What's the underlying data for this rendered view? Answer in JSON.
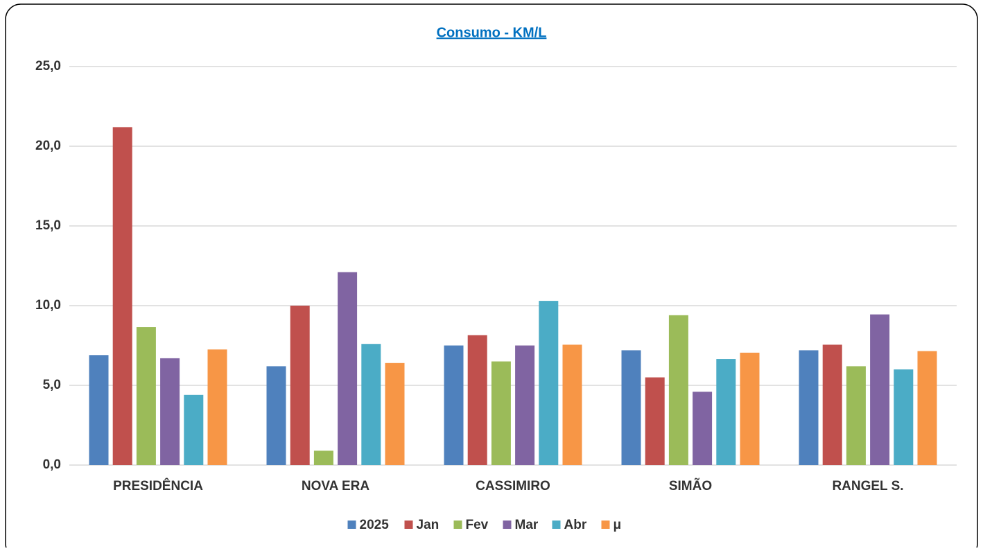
{
  "chart_data": {
    "type": "bar",
    "title": "Consumo - KM/L",
    "categories": [
      "PRESIDÊNCIA",
      "NOVA ERA",
      "CASSIMIRO",
      "SIMÃO",
      "RANGEL S."
    ],
    "series": [
      {
        "name": "2025",
        "color": "#4f81bd",
        "values": [
          6.9,
          6.2,
          7.5,
          7.2,
          7.2
        ]
      },
      {
        "name": "Jan",
        "color": "#c0504d",
        "values": [
          21.2,
          10.0,
          8.15,
          5.5,
          7.55
        ]
      },
      {
        "name": "Fev",
        "color": "#9bbb59",
        "values": [
          8.65,
          0.9,
          6.5,
          9.4,
          6.2
        ]
      },
      {
        "name": "Mar",
        "color": "#8064a2",
        "values": [
          6.7,
          12.1,
          7.5,
          4.6,
          9.45
        ]
      },
      {
        "name": "Abr",
        "color": "#4bacc6",
        "values": [
          4.4,
          7.6,
          10.3,
          6.65,
          6.0
        ]
      },
      {
        "name": "μ",
        "color": "#f79646",
        "values": [
          7.25,
          6.4,
          7.55,
          7.05,
          7.15
        ]
      }
    ],
    "ylim": [
      0,
      25
    ],
    "yticks": [
      {
        "value": 0,
        "label": "0,0"
      },
      {
        "value": 5,
        "label": "5,0"
      },
      {
        "value": 10,
        "label": "10,0"
      },
      {
        "value": 15,
        "label": "15,0"
      },
      {
        "value": 20,
        "label": "20,0"
      },
      {
        "value": 25,
        "label": "25,0"
      }
    ],
    "grid": true,
    "legend": "bottom"
  }
}
